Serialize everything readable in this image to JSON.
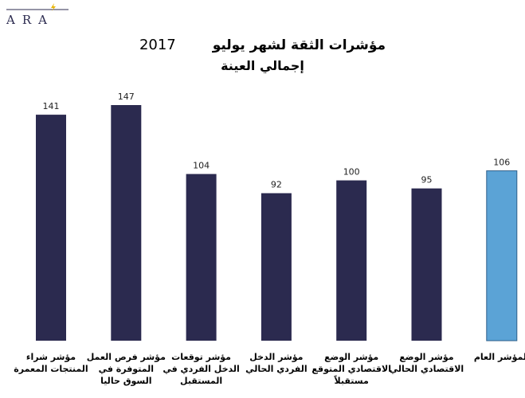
{
  "logo": {
    "text": "ARA"
  },
  "chart_data": {
    "type": "bar",
    "title": "مؤشرات الثقة لشهر يوليو",
    "title_year": "2017",
    "subtitle": "إجمالي العينة",
    "categories": [
      "مؤشر شراء المنتجات المعمرة",
      "مؤشر فرص العمل المتوفرة في السوق حاليا",
      "مؤشر توقعات الدخل الفردي في المستقبل",
      "مؤشر الدخل الفردي الحالي",
      "مؤشر الوضع الاقتصادي المتوقع مستقبلاً",
      "مؤشر الوضع الاقتصادي الحالي",
      "المؤشر العام"
    ],
    "values": [
      141,
      147,
      104,
      92,
      100,
      95,
      106
    ],
    "bar_colors": [
      "#2b2a4f",
      "#2b2a4f",
      "#2b2a4f",
      "#2b2a4f",
      "#2b2a4f",
      "#2b2a4f",
      "#5ba3d6"
    ],
    "ylim": [
      0,
      147
    ],
    "grid": false,
    "xlabel": "",
    "ylabel": ""
  }
}
